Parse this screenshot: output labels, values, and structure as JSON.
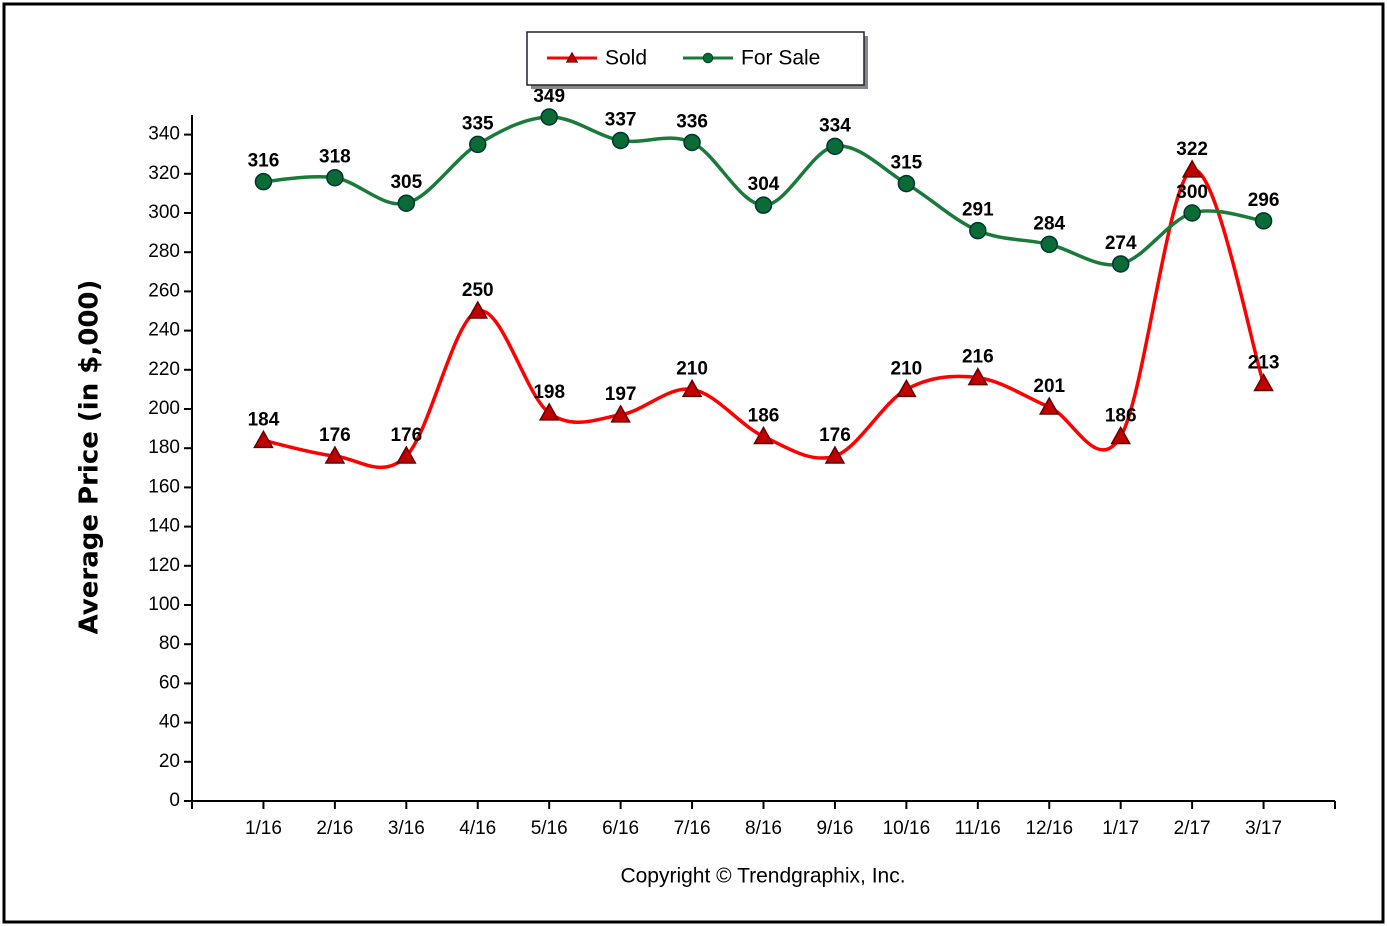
{
  "chart_data": {
    "type": "line",
    "y_label": "Average Price (in $,000)",
    "footer": "Copyright © Trendgraphix, Inc.",
    "categories": [
      "1/16",
      "2/16",
      "3/16",
      "4/16",
      "5/16",
      "6/16",
      "7/16",
      "8/16",
      "9/16",
      "10/16",
      "11/16",
      "12/16",
      "1/17",
      "2/17",
      "3/17"
    ],
    "series": [
      {
        "name": "Sold",
        "color": "#ff0000",
        "marker": "triangle",
        "marker_color": "#c00000",
        "values": [
          184,
          176,
          176,
          250,
          198,
          197,
          210,
          186,
          176,
          210,
          216,
          201,
          186,
          322,
          213
        ]
      },
      {
        "name": "For Sale",
        "color": "#1a7a3a",
        "marker": "circle",
        "marker_color": "#0b6b35",
        "values": [
          316,
          318,
          305,
          335,
          349,
          337,
          336,
          304,
          334,
          315,
          291,
          284,
          274,
          300,
          296
        ]
      }
    ],
    "ylim": [
      0,
      350
    ],
    "yticks": [
      0,
      20,
      40,
      60,
      80,
      100,
      120,
      140,
      160,
      180,
      200,
      220,
      240,
      260,
      280,
      300,
      320,
      340
    ],
    "legend": "top",
    "smooth": true
  }
}
